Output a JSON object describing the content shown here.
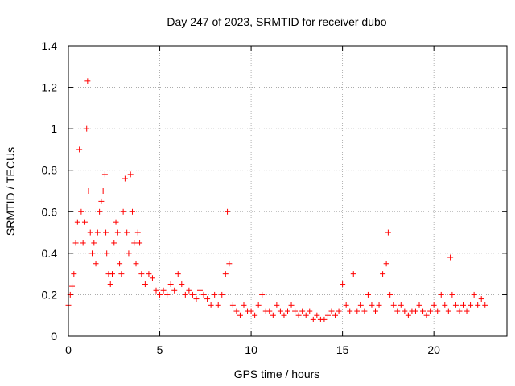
{
  "chart_data": {
    "type": "scatter",
    "title": "Day 247 of 2023, SRMTID for receiver dubo",
    "xlabel": "GPS time / hours",
    "ylabel": "SRMTID / TECUs",
    "xlim": [
      0,
      24
    ],
    "ylim": [
      0,
      1.4
    ],
    "xticks": [
      0,
      5,
      10,
      15,
      20
    ],
    "xtick_labels": [
      "0",
      "5",
      "10",
      "15",
      "20"
    ],
    "yticks": [
      0,
      0.2,
      0.4,
      0.6,
      0.8,
      1,
      1.2,
      1.4
    ],
    "ytick_labels": [
      "0",
      "0.2",
      "0.4",
      "0.6",
      "0.8",
      "1",
      "1.2",
      "1.4"
    ],
    "grid": true,
    "marker": "+",
    "color": "#ff0000",
    "series": [
      {
        "name": "SRMTID",
        "x": [
          0.0,
          0.1,
          0.2,
          0.3,
          0.4,
          0.5,
          0.6,
          0.7,
          0.8,
          0.9,
          1.0,
          1.05,
          1.1,
          1.2,
          1.3,
          1.4,
          1.5,
          1.6,
          1.7,
          1.8,
          1.9,
          2.0,
          2.05,
          2.1,
          2.2,
          2.3,
          2.4,
          2.5,
          2.6,
          2.7,
          2.8,
          2.9,
          3.0,
          3.1,
          3.2,
          3.3,
          3.4,
          3.5,
          3.6,
          3.7,
          3.8,
          3.9,
          4.0,
          4.2,
          4.4,
          4.6,
          4.8,
          5.0,
          5.2,
          5.4,
          5.6,
          5.8,
          6.0,
          6.2,
          6.4,
          6.6,
          6.8,
          7.0,
          7.2,
          7.4,
          7.6,
          7.8,
          8.0,
          8.2,
          8.4,
          8.6,
          8.7,
          8.8,
          9.0,
          9.2,
          9.4,
          9.6,
          9.8,
          10.0,
          10.2,
          10.4,
          10.6,
          10.8,
          11.0,
          11.2,
          11.4,
          11.6,
          11.8,
          12.0,
          12.2,
          12.4,
          12.6,
          12.8,
          13.0,
          13.2,
          13.4,
          13.6,
          13.8,
          14.0,
          14.2,
          14.4,
          14.6,
          14.8,
          15.0,
          15.2,
          15.4,
          15.6,
          15.8,
          16.0,
          16.2,
          16.4,
          16.6,
          16.8,
          17.0,
          17.2,
          17.4,
          17.5,
          17.6,
          17.8,
          18.0,
          18.2,
          18.4,
          18.6,
          18.8,
          19.0,
          19.2,
          19.4,
          19.6,
          19.8,
          20.0,
          20.2,
          20.4,
          20.6,
          20.8,
          20.9,
          21.0,
          21.2,
          21.4,
          21.6,
          21.8,
          22.0,
          22.2,
          22.4,
          22.6,
          22.8
        ],
        "y": [
          0.15,
          0.2,
          0.24,
          0.3,
          0.45,
          0.55,
          0.9,
          0.6,
          0.45,
          0.55,
          1.0,
          1.23,
          0.7,
          0.5,
          0.4,
          0.45,
          0.35,
          0.5,
          0.6,
          0.65,
          0.7,
          0.78,
          0.5,
          0.4,
          0.3,
          0.25,
          0.3,
          0.45,
          0.55,
          0.5,
          0.35,
          0.3,
          0.6,
          0.76,
          0.5,
          0.4,
          0.78,
          0.6,
          0.45,
          0.35,
          0.5,
          0.45,
          0.3,
          0.25,
          0.3,
          0.28,
          0.22,
          0.2,
          0.22,
          0.2,
          0.25,
          0.22,
          0.3,
          0.25,
          0.2,
          0.22,
          0.2,
          0.18,
          0.22,
          0.2,
          0.18,
          0.15,
          0.2,
          0.15,
          0.2,
          0.3,
          0.6,
          0.35,
          0.15,
          0.12,
          0.1,
          0.15,
          0.12,
          0.12,
          0.1,
          0.15,
          0.2,
          0.12,
          0.12,
          0.1,
          0.15,
          0.12,
          0.1,
          0.12,
          0.15,
          0.12,
          0.1,
          0.12,
          0.1,
          0.12,
          0.08,
          0.1,
          0.08,
          0.08,
          0.1,
          0.12,
          0.1,
          0.12,
          0.25,
          0.15,
          0.12,
          0.3,
          0.12,
          0.15,
          0.12,
          0.2,
          0.15,
          0.12,
          0.15,
          0.3,
          0.35,
          0.5,
          0.2,
          0.15,
          0.12,
          0.15,
          0.12,
          0.1,
          0.12,
          0.12,
          0.15,
          0.12,
          0.1,
          0.12,
          0.15,
          0.12,
          0.2,
          0.15,
          0.12,
          0.38,
          0.2,
          0.15,
          0.12,
          0.15,
          0.12,
          0.15,
          0.2,
          0.15,
          0.18,
          0.15
        ]
      }
    ]
  }
}
